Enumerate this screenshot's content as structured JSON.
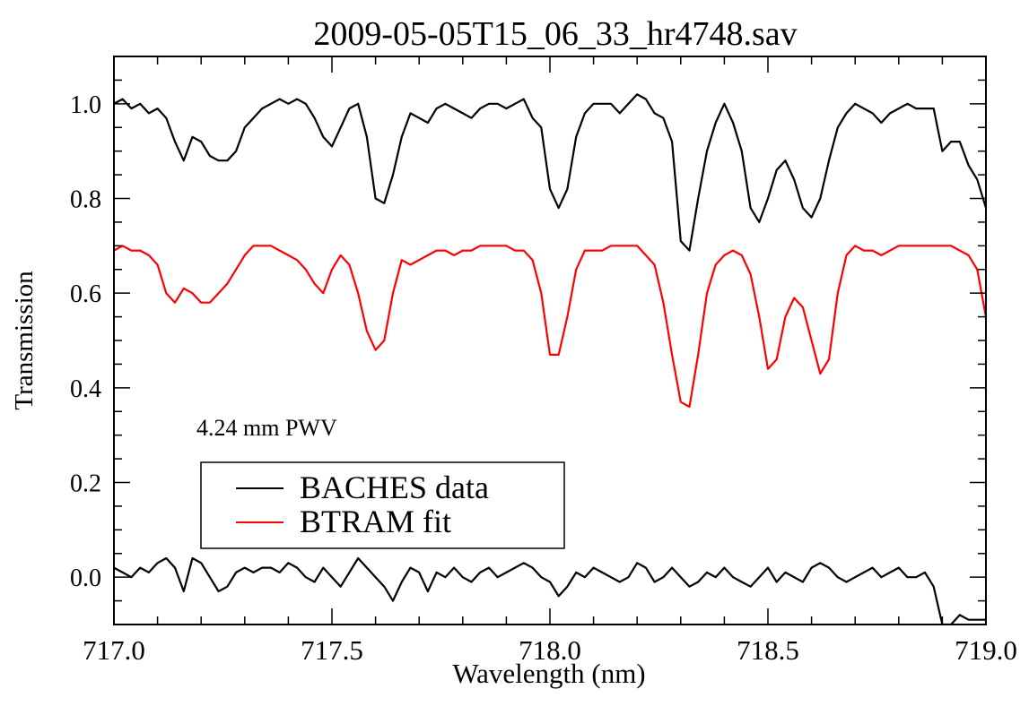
{
  "chart_data": {
    "type": "line",
    "title": "2009-05-05T15_06_33_hr4748.sav",
    "xlabel": "Wavelength (nm)",
    "ylabel": "Transmission",
    "xlim": [
      717.0,
      719.0
    ],
    "ylim": [
      -0.1,
      1.1
    ],
    "xticks": [
      717.0,
      717.5,
      718.0,
      718.5,
      719.0
    ],
    "xtick_labels": [
      "717.0",
      "717.5",
      "718.0",
      "718.5",
      "719.0"
    ],
    "yticks": [
      0.0,
      0.2,
      0.4,
      0.6,
      0.8,
      1.0
    ],
    "ytick_labels": [
      "0.0",
      "0.2",
      "0.4",
      "0.6",
      "0.8",
      "1.0"
    ],
    "grid": false,
    "legend_position": "lower-left",
    "annotation": "4.24 mm PWV",
    "colors": {
      "data": "#000000",
      "fit": "#ff0000",
      "residual": "#000000"
    },
    "series": [
      {
        "name": "BACHES data",
        "color": "#000000",
        "x": [
          717.0,
          717.02,
          717.04,
          717.06,
          717.08,
          717.1,
          717.12,
          717.14,
          717.16,
          717.18,
          717.2,
          717.22,
          717.24,
          717.26,
          717.28,
          717.3,
          717.32,
          717.34,
          717.36,
          717.38,
          717.4,
          717.42,
          717.44,
          717.46,
          717.48,
          717.5,
          717.52,
          717.54,
          717.56,
          717.58,
          717.6,
          717.62,
          717.64,
          717.66,
          717.68,
          717.7,
          717.72,
          717.74,
          717.76,
          717.78,
          717.8,
          717.82,
          717.84,
          717.86,
          717.88,
          717.9,
          717.92,
          717.94,
          717.96,
          717.98,
          718.0,
          718.02,
          718.04,
          718.06,
          718.08,
          718.1,
          718.12,
          718.14,
          718.16,
          718.18,
          718.2,
          718.22,
          718.24,
          718.26,
          718.28,
          718.3,
          718.32,
          718.34,
          718.36,
          718.38,
          718.4,
          718.42,
          718.44,
          718.46,
          718.48,
          718.5,
          718.52,
          718.54,
          718.56,
          718.58,
          718.6,
          718.62,
          718.64,
          718.66,
          718.68,
          718.7,
          718.72,
          718.74,
          718.76,
          718.78,
          718.8,
          718.82,
          718.84,
          718.86,
          718.88,
          718.9,
          718.92,
          718.94,
          718.96,
          718.98,
          719.0
        ],
        "y": [
          1.0,
          1.01,
          0.99,
          1.0,
          0.98,
          0.99,
          0.97,
          0.92,
          0.88,
          0.93,
          0.92,
          0.89,
          0.88,
          0.88,
          0.9,
          0.95,
          0.97,
          0.99,
          1.0,
          1.01,
          1.0,
          1.01,
          1.0,
          0.97,
          0.93,
          0.91,
          0.95,
          0.99,
          1.0,
          0.93,
          0.8,
          0.79,
          0.85,
          0.93,
          0.98,
          0.97,
          0.96,
          0.99,
          1.0,
          0.99,
          0.98,
          0.97,
          0.99,
          1.0,
          1.0,
          0.99,
          1.0,
          1.01,
          0.97,
          0.95,
          0.82,
          0.78,
          0.82,
          0.93,
          0.98,
          1.0,
          1.0,
          1.0,
          0.98,
          1.0,
          1.02,
          1.01,
          0.98,
          0.97,
          0.92,
          0.71,
          0.69,
          0.8,
          0.9,
          0.96,
          1.0,
          0.96,
          0.9,
          0.78,
          0.75,
          0.8,
          0.86,
          0.88,
          0.84,
          0.78,
          0.76,
          0.8,
          0.88,
          0.95,
          0.98,
          1.0,
          0.99,
          0.98,
          0.96,
          0.98,
          0.99,
          1.0,
          0.99,
          0.99,
          0.99,
          0.9,
          0.92,
          0.92,
          0.87,
          0.84,
          0.78
        ]
      },
      {
        "name": "BTRAM fit",
        "color": "#ff0000",
        "x": [
          717.0,
          717.02,
          717.04,
          717.06,
          717.08,
          717.1,
          717.12,
          717.14,
          717.16,
          717.18,
          717.2,
          717.22,
          717.24,
          717.26,
          717.28,
          717.3,
          717.32,
          717.34,
          717.36,
          717.38,
          717.4,
          717.42,
          717.44,
          717.46,
          717.48,
          717.5,
          717.52,
          717.54,
          717.56,
          717.58,
          717.6,
          717.62,
          717.64,
          717.66,
          717.68,
          717.7,
          717.72,
          717.74,
          717.76,
          717.78,
          717.8,
          717.82,
          717.84,
          717.86,
          717.88,
          717.9,
          717.92,
          717.94,
          717.96,
          717.98,
          718.0,
          718.02,
          718.04,
          718.06,
          718.08,
          718.1,
          718.12,
          718.14,
          718.16,
          718.18,
          718.2,
          718.22,
          718.24,
          718.26,
          718.28,
          718.3,
          718.32,
          718.34,
          718.36,
          718.38,
          718.4,
          718.42,
          718.44,
          718.46,
          718.48,
          718.5,
          718.52,
          718.54,
          718.56,
          718.58,
          718.6,
          718.62,
          718.64,
          718.66,
          718.68,
          718.7,
          718.72,
          718.74,
          718.76,
          718.78,
          718.8,
          718.82,
          718.84,
          718.86,
          718.88,
          718.9,
          718.92,
          718.94,
          718.96,
          718.98,
          719.0
        ],
        "y": [
          0.69,
          0.7,
          0.69,
          0.69,
          0.68,
          0.66,
          0.6,
          0.58,
          0.61,
          0.6,
          0.58,
          0.58,
          0.6,
          0.62,
          0.65,
          0.68,
          0.7,
          0.7,
          0.7,
          0.69,
          0.68,
          0.67,
          0.65,
          0.62,
          0.6,
          0.65,
          0.68,
          0.66,
          0.6,
          0.52,
          0.48,
          0.5,
          0.6,
          0.67,
          0.66,
          0.67,
          0.68,
          0.69,
          0.69,
          0.68,
          0.69,
          0.69,
          0.7,
          0.7,
          0.7,
          0.7,
          0.69,
          0.69,
          0.67,
          0.6,
          0.47,
          0.47,
          0.55,
          0.65,
          0.69,
          0.69,
          0.69,
          0.7,
          0.7,
          0.7,
          0.7,
          0.68,
          0.66,
          0.58,
          0.47,
          0.37,
          0.36,
          0.47,
          0.6,
          0.66,
          0.68,
          0.69,
          0.68,
          0.64,
          0.55,
          0.44,
          0.46,
          0.55,
          0.59,
          0.57,
          0.5,
          0.43,
          0.46,
          0.6,
          0.68,
          0.7,
          0.69,
          0.69,
          0.68,
          0.69,
          0.7,
          0.7,
          0.7,
          0.7,
          0.7,
          0.7,
          0.7,
          0.69,
          0.68,
          0.65,
          0.55
        ]
      },
      {
        "color": "#000000",
        "x": [
          717.0,
          717.02,
          717.04,
          717.06,
          717.08,
          717.1,
          717.12,
          717.14,
          717.16,
          717.18,
          717.2,
          717.22,
          717.24,
          717.26,
          717.28,
          717.3,
          717.32,
          717.34,
          717.36,
          717.38,
          717.4,
          717.42,
          717.44,
          717.46,
          717.48,
          717.5,
          717.52,
          717.54,
          717.56,
          717.58,
          717.6,
          717.62,
          717.64,
          717.66,
          717.68,
          717.7,
          717.72,
          717.74,
          717.76,
          717.78,
          717.8,
          717.82,
          717.84,
          717.86,
          717.88,
          717.9,
          717.92,
          717.94,
          717.96,
          717.98,
          718.0,
          718.02,
          718.04,
          718.06,
          718.08,
          718.1,
          718.12,
          718.14,
          718.16,
          718.18,
          718.2,
          718.22,
          718.24,
          718.26,
          718.28,
          718.3,
          718.32,
          718.34,
          718.36,
          718.38,
          718.4,
          718.42,
          718.44,
          718.46,
          718.48,
          718.5,
          718.52,
          718.54,
          718.56,
          718.58,
          718.6,
          718.62,
          718.64,
          718.66,
          718.68,
          718.7,
          718.72,
          718.74,
          718.76,
          718.78,
          718.8,
          718.82,
          718.84,
          718.86,
          718.88,
          718.9,
          718.92,
          718.94,
          718.96,
          718.98,
          719.0
        ],
        "y": [
          0.02,
          0.01,
          0.0,
          0.02,
          0.01,
          0.03,
          0.04,
          0.02,
          -0.03,
          0.04,
          0.03,
          0.0,
          -0.03,
          -0.02,
          0.01,
          0.02,
          0.01,
          0.02,
          0.02,
          0.01,
          0.03,
          0.02,
          0.0,
          -0.01,
          0.02,
          0.0,
          -0.02,
          0.01,
          0.04,
          0.02,
          0.0,
          -0.02,
          -0.05,
          -0.01,
          0.02,
          0.01,
          -0.03,
          0.01,
          0.0,
          0.02,
          0.0,
          -0.01,
          0.01,
          0.02,
          0.0,
          0.01,
          0.02,
          0.03,
          0.02,
          0.0,
          -0.01,
          -0.04,
          -0.02,
          0.01,
          0.0,
          0.02,
          0.01,
          0.0,
          -0.01,
          0.0,
          0.03,
          0.02,
          -0.01,
          0.0,
          0.02,
          0.0,
          -0.02,
          -0.01,
          0.01,
          0.0,
          0.02,
          0.0,
          -0.01,
          -0.02,
          0.0,
          0.02,
          -0.01,
          0.01,
          0.0,
          -0.01,
          0.02,
          0.03,
          0.02,
          0.0,
          -0.01,
          0.0,
          0.01,
          0.02,
          0.0,
          0.01,
          0.02,
          0.0,
          0.0,
          0.01,
          -0.02,
          -0.1,
          -0.1,
          -0.08,
          -0.09,
          -0.09,
          -0.09
        ]
      }
    ]
  }
}
